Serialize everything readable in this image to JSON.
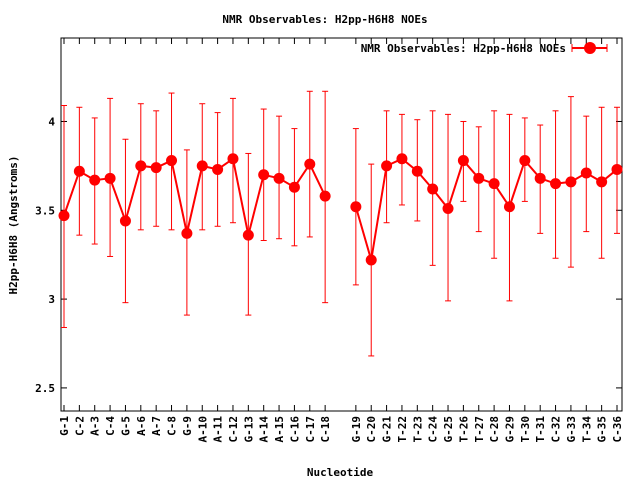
{
  "chart_data": {
    "type": "line",
    "title": "NMR Observables: H2pp-H6H8 NOEs",
    "xlabel": "Nucleotide",
    "ylabel": "H2pp-H6H8 (Angstroms)",
    "ylim": [
      2.37,
      4.47
    ],
    "yticks": [
      "2.5",
      "3",
      "3.5",
      "4"
    ],
    "ytick_values": [
      2.5,
      3,
      3.5,
      4
    ],
    "legend_position": "top-right",
    "series": [
      {
        "name": "NMR Observables: H2pp-H6H8 NOEs",
        "color": "#ff0000",
        "points": [
          {
            "label": "G-1",
            "index": 1,
            "value": 3.47,
            "low": 2.84,
            "high": 4.09
          },
          {
            "label": "C-2",
            "index": 2,
            "value": 3.72,
            "low": 3.36,
            "high": 4.08
          },
          {
            "label": "A-3",
            "index": 3,
            "value": 3.67,
            "low": 3.31,
            "high": 4.02
          },
          {
            "label": "C-4",
            "index": 4,
            "value": 3.68,
            "low": 3.24,
            "high": 4.13
          },
          {
            "label": "G-5",
            "index": 5,
            "value": 3.44,
            "low": 2.98,
            "high": 3.9
          },
          {
            "label": "A-6",
            "index": 6,
            "value": 3.75,
            "low": 3.39,
            "high": 4.1
          },
          {
            "label": "A-7",
            "index": 7,
            "value": 3.74,
            "low": 3.41,
            "high": 4.06
          },
          {
            "label": "C-8",
            "index": 8,
            "value": 3.78,
            "low": 3.39,
            "high": 4.16
          },
          {
            "label": "G-9",
            "index": 9,
            "value": 3.37,
            "low": 2.91,
            "high": 3.84
          },
          {
            "label": "A-10",
            "index": 10,
            "value": 3.75,
            "low": 3.39,
            "high": 4.1
          },
          {
            "label": "A-11",
            "index": 11,
            "value": 3.73,
            "low": 3.41,
            "high": 4.05
          },
          {
            "label": "C-12",
            "index": 12,
            "value": 3.79,
            "low": 3.43,
            "high": 4.13
          },
          {
            "label": "G-13",
            "index": 13,
            "value": 3.36,
            "low": 2.91,
            "high": 3.82
          },
          {
            "label": "A-14",
            "index": 14,
            "value": 3.7,
            "low": 3.33,
            "high": 4.07
          },
          {
            "label": "A-15",
            "index": 15,
            "value": 3.68,
            "low": 3.34,
            "high": 4.03
          },
          {
            "label": "C-16",
            "index": 16,
            "value": 3.63,
            "low": 3.3,
            "high": 3.96
          },
          {
            "label": "C-17",
            "index": 17,
            "value": 3.76,
            "low": 3.35,
            "high": 4.17
          },
          {
            "label": "C-18",
            "index": 18,
            "value": 3.58,
            "low": 2.98,
            "high": 4.17
          },
          {
            "label": "G-19",
            "index": 20,
            "value": 3.52,
            "low": 3.08,
            "high": 3.96
          },
          {
            "label": "C-20",
            "index": 21,
            "value": 3.22,
            "low": 2.68,
            "high": 3.76
          },
          {
            "label": "G-21",
            "index": 22,
            "value": 3.75,
            "low": 3.43,
            "high": 4.06
          },
          {
            "label": "T-22",
            "index": 23,
            "value": 3.79,
            "low": 3.53,
            "high": 4.04
          },
          {
            "label": "T-23",
            "index": 24,
            "value": 3.72,
            "low": 3.44,
            "high": 4.01
          },
          {
            "label": "C-24",
            "index": 25,
            "value": 3.62,
            "low": 3.19,
            "high": 4.06
          },
          {
            "label": "G-25",
            "index": 26,
            "value": 3.51,
            "low": 2.99,
            "high": 4.04
          },
          {
            "label": "T-26",
            "index": 27,
            "value": 3.78,
            "low": 3.55,
            "high": 4.0
          },
          {
            "label": "T-27",
            "index": 28,
            "value": 3.68,
            "low": 3.38,
            "high": 3.97
          },
          {
            "label": "C-28",
            "index": 29,
            "value": 3.65,
            "low": 3.23,
            "high": 4.06
          },
          {
            "label": "G-29",
            "index": 30,
            "value": 3.52,
            "low": 2.99,
            "high": 4.04
          },
          {
            "label": "T-30",
            "index": 31,
            "value": 3.78,
            "low": 3.55,
            "high": 4.02
          },
          {
            "label": "T-31",
            "index": 32,
            "value": 3.68,
            "low": 3.37,
            "high": 3.98
          },
          {
            "label": "C-32",
            "index": 33,
            "value": 3.65,
            "low": 3.23,
            "high": 4.06
          },
          {
            "label": "G-33",
            "index": 34,
            "value": 3.66,
            "low": 3.18,
            "high": 4.14
          },
          {
            "label": "T-34",
            "index": 35,
            "value": 3.71,
            "low": 3.38,
            "high": 4.03
          },
          {
            "label": "G-35",
            "index": 36,
            "value": 3.66,
            "low": 3.23,
            "high": 4.08
          },
          {
            "label": "C-36",
            "index": 37,
            "value": 3.73,
            "low": 3.37,
            "high": 4.08
          }
        ]
      }
    ]
  }
}
